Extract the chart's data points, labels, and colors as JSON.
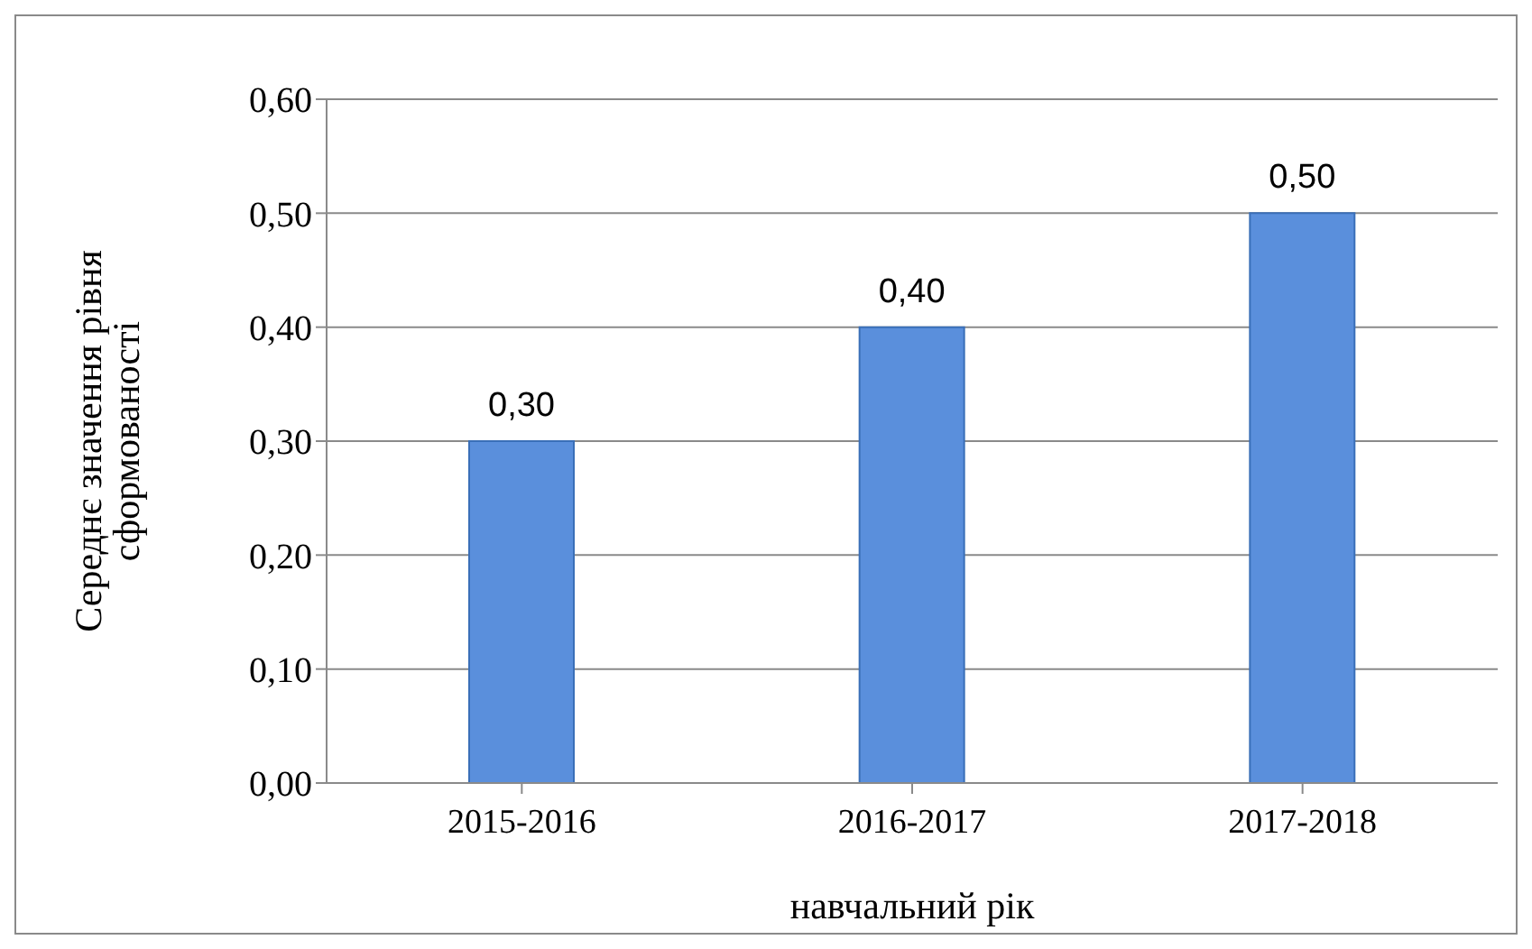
{
  "chart_data": {
    "type": "bar",
    "xlabel": "навчальний рік",
    "ylabel": "Середнє значення рівня сформованості",
    "categories": [
      "2015-2016",
      "2016-2017",
      "2017-2018"
    ],
    "values": [
      0.3,
      0.4,
      0.5
    ],
    "color": "#5a8fdc",
    "value_labels": [
      "0,30",
      "0,40",
      "0,50"
    ],
    "ylim": [
      0,
      0.6
    ],
    "yticks": [
      {
        "value": 0,
        "label": "0,00"
      },
      {
        "value": 0.1,
        "label": "0,10"
      },
      {
        "value": 0.2,
        "label": "0,20"
      },
      {
        "value": 0.3,
        "label": "0,30"
      },
      {
        "value": 0.4,
        "label": "0,40"
      },
      {
        "value": 0.5,
        "label": "0,50"
      },
      {
        "value": 0.6,
        "label": "0,60"
      }
    ],
    "grid": "y",
    "legend": false
  }
}
